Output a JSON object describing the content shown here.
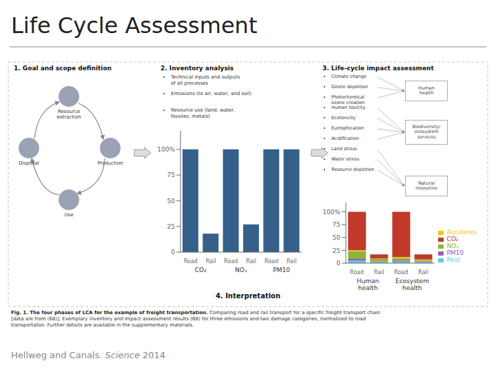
{
  "title": "Life Cycle Assessment",
  "annotations": [
    "1. Goal and scope definition",
    "2. Inventory analysis",
    "3. Life-cycle impact assessment",
    "4. Interpretation",
    "Resource\nextraction",
    "Production",
    "Use",
    "Disposal",
    "Technical inputs and outputs\nof all processes",
    "Emissions (to air, water, and soil)",
    "Resource use (land, water,\nfossiles, metals)",
    "Climate change",
    "Ozone depletion",
    "Photochemical\nozone creation",
    "Human toxicity",
    "Ecotoxicity",
    "Eutrophication",
    "Acidification",
    "Land stress",
    "Water stress",
    "Resource depletion",
    "Human\nhealth",
    "Biodiversity/\necosystem\nservices",
    "Natural\nresources",
    "Fig. 1. The four phases of LCA for the example of freight transportation.",
    " Comparing road and rail transport for a specific freight transport chain\n[data are from (68)]. Exemplary inventory and impact assessment results (68) for three emissions and two damage categories, normalized to road\ntransportaton. Further details are available in the supplementary materials.",
    "Hellweg and Canals. ",
    "Science",
    " 2014"
  ],
  "chart_data": [
    {
      "type": "bar",
      "categories": [
        "Road",
        "Rail",
        "Road",
        "Rail",
        "Road",
        "Rail"
      ],
      "annotations": [
        "CO₂",
        "NOₓ",
        "PM10"
      ],
      "values": [
        100,
        18,
        100,
        27,
        100,
        100
      ],
      "color": "#34608a",
      "ylim": [
        0,
        118
      ],
      "yticks": [
        0,
        25,
        50,
        75,
        {
          "value": 100,
          "label": "100%"
        }
      ],
      "grid": false
    },
    {
      "type": "bar",
      "stacked": true,
      "categories": [
        "Road",
        "Rail",
        "Road",
        "Rail"
      ],
      "annotations": [
        "Human\nhealth",
        "Ecosystem\nhealth"
      ],
      "series": [
        {
          "name": "Rest",
          "color": "#5bc8e8",
          "values": [
            5,
            2,
            3,
            2
          ]
        },
        {
          "name": "PM10",
          "color": "#9b59b6",
          "values": [
            3,
            1,
            2,
            1
          ]
        },
        {
          "name": "NOₓ",
          "color": "#8db33a",
          "values": [
            15,
            5,
            5,
            3
          ]
        },
        {
          "name": "Accidents",
          "color": "#f1c40f",
          "values": [
            2,
            1,
            2,
            1
          ]
        },
        {
          "name": "CO₂",
          "color": "#c0392b",
          "values": [
            75,
            8,
            88,
            10
          ]
        }
      ],
      "ylim": [
        0,
        118
      ],
      "yticks": [
        0,
        25,
        50,
        75,
        {
          "value": 100,
          "label": "100%"
        }
      ],
      "grid": false,
      "legend": "right"
    }
  ]
}
